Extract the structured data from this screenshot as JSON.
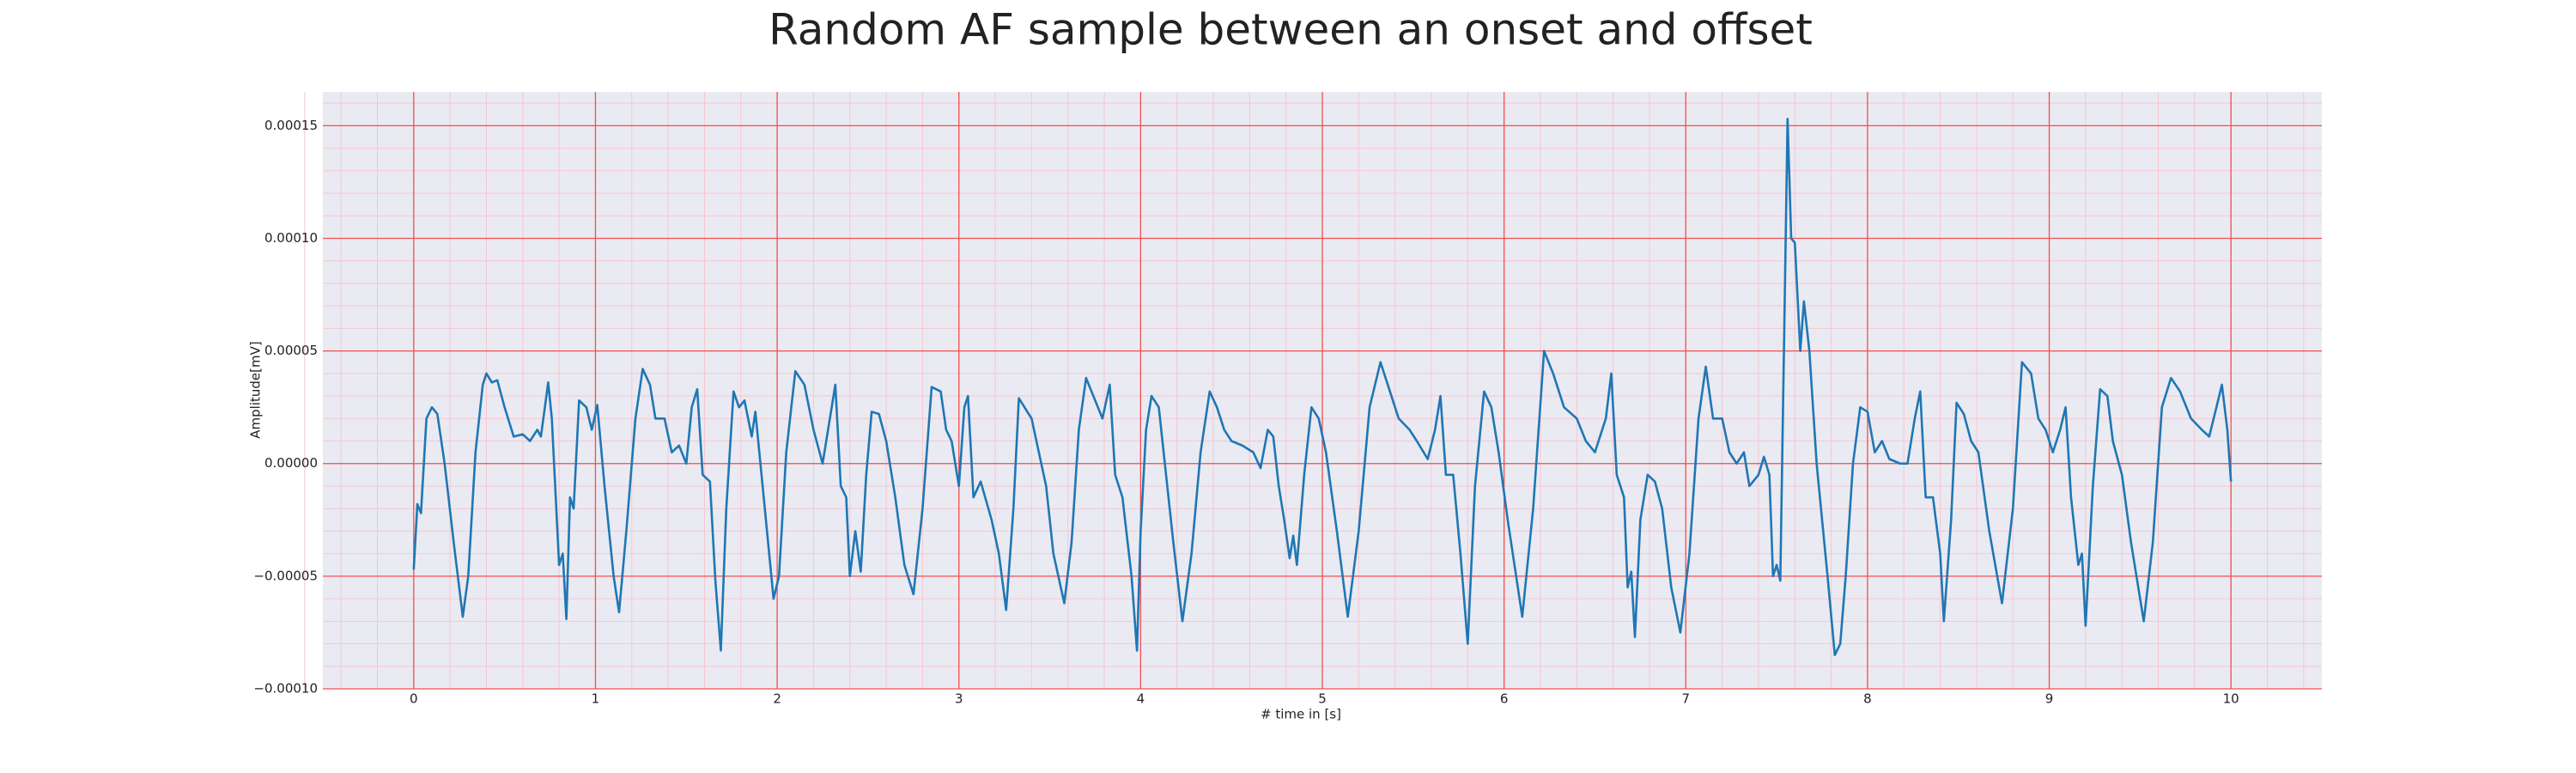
{
  "chart_data": {
    "type": "line",
    "title": "Random AF sample between an onset and offset",
    "xlabel": "# time in [s]",
    "ylabel": "Amplitude[mV]",
    "color": "#1f77b4",
    "grid": true,
    "minor_grid": true,
    "xlim": [
      -0.5,
      10.5
    ],
    "ylim": [
      -0.0001,
      0.000165
    ],
    "xticks": [
      0,
      1,
      2,
      3,
      4,
      5,
      6,
      7,
      8,
      9,
      10
    ],
    "yticks": [
      {
        "value": -0.0001,
        "label": "−0.00010"
      },
      {
        "value": -5e-05,
        "label": "−0.00005"
      },
      {
        "value": 0,
        "label": "0.00000"
      },
      {
        "value": 5e-05,
        "label": "0.00005"
      },
      {
        "value": 0.0001,
        "label": "0.00010"
      },
      {
        "value": 0.00015,
        "label": "0.00015"
      }
    ],
    "x": [
      0.0,
      0.02,
      0.04,
      0.07,
      0.1,
      0.13,
      0.17,
      0.22,
      0.27,
      0.3,
      0.34,
      0.38,
      0.4,
      0.43,
      0.46,
      0.5,
      0.55,
      0.6,
      0.64,
      0.68,
      0.7,
      0.74,
      0.76,
      0.8,
      0.82,
      0.84,
      0.86,
      0.88,
      0.91,
      0.95,
      0.98,
      1.01,
      1.05,
      1.1,
      1.13,
      1.17,
      1.22,
      1.26,
      1.3,
      1.33,
      1.38,
      1.42,
      1.46,
      1.5,
      1.53,
      1.56,
      1.59,
      1.63,
      1.66,
      1.69,
      1.72,
      1.76,
      1.79,
      1.82,
      1.86,
      1.88,
      1.92,
      1.98,
      2.01,
      2.05,
      2.1,
      2.15,
      2.2,
      2.25,
      2.29,
      2.32,
      2.35,
      2.38,
      2.4,
      2.43,
      2.46,
      2.49,
      2.52,
      2.56,
      2.6,
      2.65,
      2.7,
      2.75,
      2.8,
      2.85,
      2.9,
      2.93,
      2.96,
      3.0,
      3.03,
      3.05,
      3.08,
      3.12,
      3.18,
      3.22,
      3.26,
      3.3,
      3.33,
      3.4,
      3.44,
      3.48,
      3.52,
      3.58,
      3.62,
      3.66,
      3.7,
      3.75,
      3.79,
      3.83,
      3.86,
      3.9,
      3.95,
      3.98,
      4.0,
      4.03,
      4.06,
      4.1,
      4.14,
      4.18,
      4.23,
      4.28,
      4.33,
      4.38,
      4.42,
      4.46,
      4.5,
      4.56,
      4.62,
      4.66,
      4.7,
      4.73,
      4.76,
      4.79,
      4.82,
      4.84,
      4.86,
      4.9,
      4.94,
      4.98,
      5.02,
      5.08,
      5.14,
      5.2,
      5.26,
      5.32,
      5.36,
      5.42,
      5.48,
      5.52,
      5.58,
      5.62,
      5.65,
      5.68,
      5.72,
      5.76,
      5.8,
      5.84,
      5.89,
      5.93,
      5.97,
      6.02,
      6.1,
      6.16,
      6.22,
      6.27,
      6.33,
      6.4,
      6.45,
      6.5,
      6.56,
      6.59,
      6.62,
      6.66,
      6.68,
      6.7,
      6.72,
      6.75,
      6.79,
      6.83,
      6.87,
      6.92,
      6.97,
      7.02,
      7.07,
      7.11,
      7.15,
      7.2,
      7.24,
      7.28,
      7.32,
      7.35,
      7.4,
      7.43,
      7.46,
      7.48,
      7.5,
      7.52,
      7.54,
      7.56,
      7.58,
      7.6,
      7.63,
      7.65,
      7.68,
      7.72,
      7.78,
      7.82,
      7.85,
      7.88,
      7.92,
      7.96,
      8.0,
      8.04,
      8.08,
      8.12,
      8.18,
      8.22,
      8.26,
      8.29,
      8.32,
      8.36,
      8.4,
      8.42,
      8.46,
      8.49,
      8.53,
      8.57,
      8.61,
      8.67,
      8.74,
      8.8,
      8.85,
      8.9,
      8.94,
      8.98,
      9.02,
      9.06,
      9.09,
      9.12,
      9.16,
      9.18,
      9.2,
      9.24,
      9.28,
      9.32,
      9.35,
      9.4,
      9.45,
      9.52,
      9.57,
      9.62,
      9.67,
      9.72,
      9.78,
      9.84,
      9.88,
      9.92,
      9.95,
      9.98,
      10.0
    ],
    "values": [
      -4.7e-05,
      -1.8e-05,
      -2.2e-05,
      2e-05,
      2.5e-05,
      2.2e-05,
      0.0,
      -3.5e-05,
      -6.8e-05,
      -5e-05,
      5e-06,
      3.5e-05,
      4e-05,
      3.6e-05,
      3.7e-05,
      2.5e-05,
      1.2e-05,
      1.3e-05,
      1e-05,
      1.5e-05,
      1.2e-05,
      3.6e-05,
      2e-05,
      -4.5e-05,
      -4e-05,
      -6.9e-05,
      -1.5e-05,
      -2e-05,
      2.8e-05,
      2.5e-05,
      1.5e-05,
      2.6e-05,
      -1e-05,
      -5e-05,
      -6.6e-05,
      -3e-05,
      2e-05,
      4.2e-05,
      3.5e-05,
      2e-05,
      2e-05,
      5e-06,
      8e-06,
      0.0,
      2.5e-05,
      3.3e-05,
      -5e-06,
      -8e-06,
      -5.2e-05,
      -8.3e-05,
      -2e-05,
      3.2e-05,
      2.5e-05,
      2.8e-05,
      1.2e-05,
      2.3e-05,
      -1e-05,
      -6e-05,
      -5e-05,
      5e-06,
      4.1e-05,
      3.5e-05,
      1.5e-05,
      0.0,
      2e-05,
      3.5e-05,
      -1e-05,
      -1.5e-05,
      -5e-05,
      -3e-05,
      -4.8e-05,
      -5e-06,
      2.3e-05,
      2.2e-05,
      1e-05,
      -1.5e-05,
      -4.5e-05,
      -5.8e-05,
      -2e-05,
      3.4e-05,
      3.2e-05,
      1.5e-05,
      1e-05,
      -1e-05,
      2.5e-05,
      3e-05,
      -1.5e-05,
      -8e-06,
      -2.5e-05,
      -4e-05,
      -6.5e-05,
      -2e-05,
      2.9e-05,
      2e-05,
      5e-06,
      -1e-05,
      -4e-05,
      -6.2e-05,
      -3.5e-05,
      1.5e-05,
      3.8e-05,
      2.8e-05,
      2e-05,
      3.5e-05,
      -5e-06,
      -1.5e-05,
      -5e-05,
      -8.3e-05,
      -3e-05,
      1.5e-05,
      3e-05,
      2.5e-05,
      -5e-06,
      -3.5e-05,
      -7e-05,
      -4e-05,
      5e-06,
      3.2e-05,
      2.5e-05,
      1.5e-05,
      1e-05,
      8e-06,
      5e-06,
      -2e-06,
      1.5e-05,
      1.2e-05,
      -1e-05,
      -2.5e-05,
      -4.2e-05,
      -3.2e-05,
      -4.5e-05,
      -5e-06,
      2.5e-05,
      2e-05,
      5e-06,
      -3e-05,
      -6.8e-05,
      -3e-05,
      2.5e-05,
      4.5e-05,
      3.5e-05,
      2e-05,
      1.5e-05,
      1e-05,
      2e-06,
      1.5e-05,
      3e-05,
      -5e-06,
      -5e-06,
      -4e-05,
      -8e-05,
      -1e-05,
      3.2e-05,
      2.5e-05,
      5e-06,
      -2.5e-05,
      -6.8e-05,
      -2e-05,
      5e-05,
      4e-05,
      2.5e-05,
      2e-05,
      1e-05,
      5e-06,
      2e-05,
      4e-05,
      -5e-06,
      -1.5e-05,
      -5.5e-05,
      -4.8e-05,
      -7.7e-05,
      -2.5e-05,
      -5e-06,
      -8e-06,
      -2e-05,
      -5.5e-05,
      -7.5e-05,
      -4e-05,
      2e-05,
      4.3e-05,
      2e-05,
      2e-05,
      5e-06,
      0.0,
      5e-06,
      -1e-05,
      -5e-06,
      3e-06,
      -5e-06,
      -5e-05,
      -4.5e-05,
      -5.2e-05,
      5e-05,
      0.000153,
      0.0001,
      9.8e-05,
      5e-05,
      7.2e-05,
      5e-05,
      0.0,
      -5e-05,
      -8.5e-05,
      -8e-05,
      -5e-05,
      0.0,
      2.5e-05,
      2.3e-05,
      5e-06,
      1e-05,
      2e-06,
      0.0,
      0.0,
      2e-05,
      3.2e-05,
      -1.5e-05,
      -1.5e-05,
      -4e-05,
      -7e-05,
      -2.5e-05,
      2.7e-05,
      2.2e-05,
      1e-05,
      5e-06,
      -3e-05,
      -6.2e-05,
      -2e-05,
      4.5e-05,
      4e-05,
      2e-05,
      1.5e-05,
      5e-06,
      1.5e-05,
      2.5e-05,
      -1.5e-05,
      -4.5e-05,
      -4e-05,
      -7.2e-05,
      -1e-05,
      3.3e-05,
      3e-05,
      1e-05,
      -5e-06,
      -3.5e-05,
      -7e-05,
      -3.5e-05,
      2.5e-05,
      3.8e-05,
      3.2e-05,
      2e-05,
      1.5e-05,
      1.2e-05,
      2.5e-05,
      3.5e-05,
      1.5e-05,
      -8e-06
    ]
  }
}
